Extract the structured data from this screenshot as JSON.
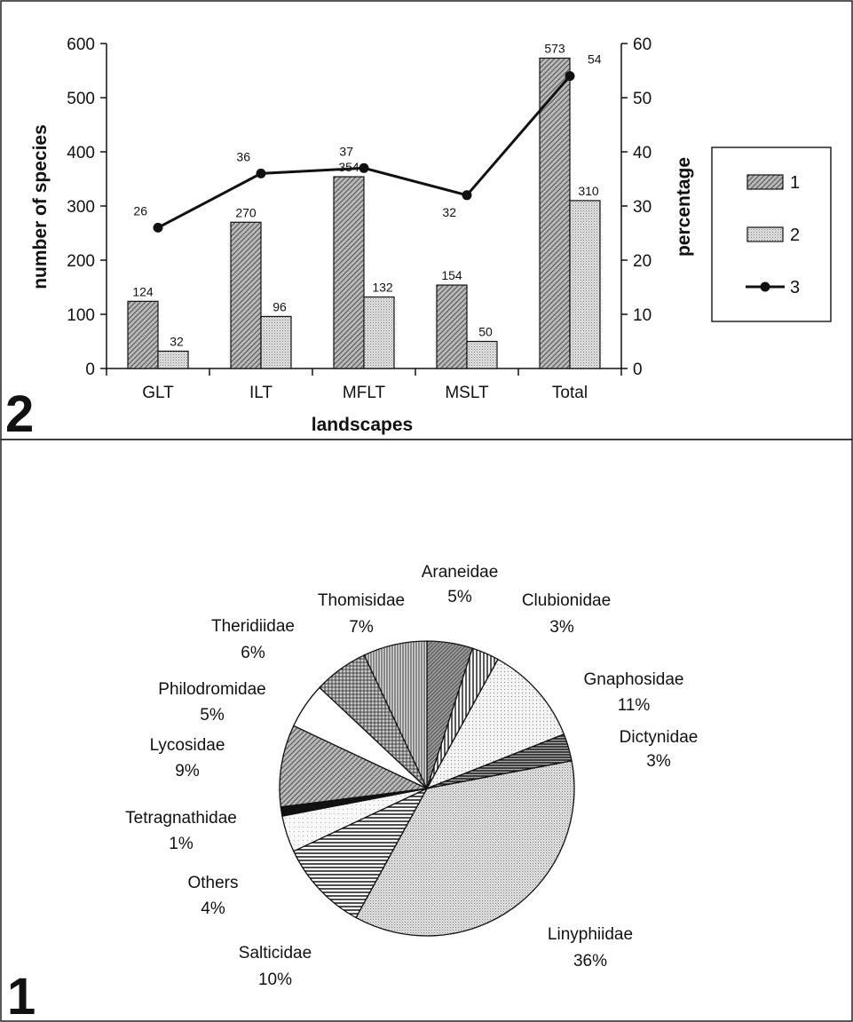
{
  "panels": [
    {
      "number": "2"
    },
    {
      "number": "1"
    }
  ],
  "chart_data": [
    {
      "type": "bar",
      "xlabel": "landscapes",
      "ylabel": "number of species",
      "y2label": "percentage",
      "ylim": [
        0,
        600
      ],
      "y2lim": [
        0,
        60
      ],
      "yticks": [
        "0",
        "100",
        "200",
        "300",
        "400",
        "500",
        "600"
      ],
      "y2ticks": [
        "0",
        "10",
        "20",
        "30",
        "40",
        "50",
        "60"
      ],
      "grid": false,
      "legend_position": "right",
      "categories": [
        "GLT",
        "ILT",
        "MFLT",
        "MSLT",
        "Total"
      ],
      "series": [
        {
          "name": "1",
          "kind": "bar",
          "axis": "left",
          "pattern": "hatch-dark",
          "values": [
            124,
            270,
            354,
            154,
            573
          ]
        },
        {
          "name": "2",
          "kind": "bar",
          "axis": "left",
          "pattern": "dots-light",
          "values": [
            32,
            96,
            132,
            50,
            310
          ]
        },
        {
          "name": "3",
          "kind": "line",
          "axis": "right",
          "values": [
            26,
            36,
            37,
            32,
            54
          ]
        }
      ]
    },
    {
      "type": "pie",
      "start": "top",
      "direction": "clockwise",
      "slices": [
        {
          "label": "Araneidae",
          "value_label": "5%",
          "value": 5,
          "pattern": "hatch-dense"
        },
        {
          "label": "Clubionidae",
          "value_label": "3%",
          "value": 3,
          "pattern": "vertical-lines"
        },
        {
          "label": "Gnaphosidae",
          "value_label": "11%",
          "value": 11,
          "pattern": "dots-sparse"
        },
        {
          "label": "Dictynidae",
          "value_label": "3%",
          "value": 3,
          "pattern": "horizontal-dense"
        },
        {
          "label": "Linyphiidae",
          "value_label": "36%",
          "value": 36,
          "pattern": "dots-light"
        },
        {
          "label": "Salticidae",
          "value_label": "10%",
          "value": 10,
          "pattern": "horizontal-lines"
        },
        {
          "label": "Others",
          "value_label": "4%",
          "value": 4,
          "pattern": "dots-faint"
        },
        {
          "label": "Tetragnathidae",
          "value_label": "1%",
          "value": 1,
          "pattern": "solid-black"
        },
        {
          "label": "Lycosidae",
          "value_label": "9%",
          "value": 9,
          "pattern": "hatch-dark"
        },
        {
          "label": "Philodromidae",
          "value_label": "5%",
          "value": 5,
          "pattern": "white"
        },
        {
          "label": "Theridiidae",
          "value_label": "6%",
          "value": 6,
          "pattern": "crosshatch"
        },
        {
          "label": "Thomisidae",
          "value_label": "7%",
          "value": 7,
          "pattern": "vertical-dense"
        }
      ]
    }
  ]
}
